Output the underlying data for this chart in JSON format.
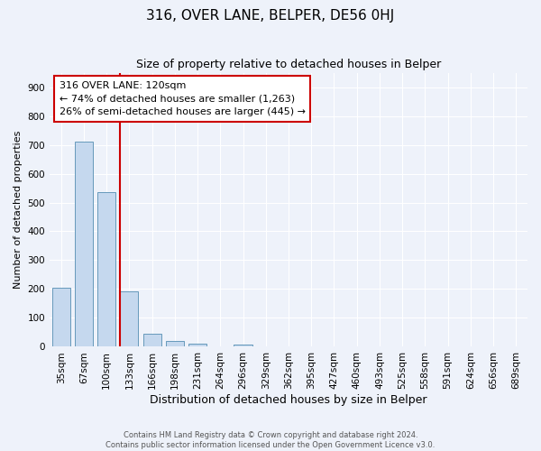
{
  "title": "316, OVER LANE, BELPER, DE56 0HJ",
  "subtitle": "Size of property relative to detached houses in Belper",
  "xlabel": "Distribution of detached houses by size in Belper",
  "ylabel": "Number of detached properties",
  "bin_labels": [
    "35sqm",
    "67sqm",
    "100sqm",
    "133sqm",
    "166sqm",
    "198sqm",
    "231sqm",
    "264sqm",
    "296sqm",
    "329sqm",
    "362sqm",
    "395sqm",
    "427sqm",
    "460sqm",
    "493sqm",
    "525sqm",
    "558sqm",
    "591sqm",
    "624sqm",
    "656sqm",
    "689sqm"
  ],
  "bar_heights": [
    204,
    710,
    537,
    193,
    46,
    20,
    11,
    0,
    8,
    0,
    0,
    0,
    0,
    0,
    0,
    0,
    0,
    0,
    0,
    0,
    0
  ],
  "bar_color": "#c5d8ee",
  "bar_edge_color": "#6699bb",
  "property_line_bin_index": 2.606,
  "annotation_title": "316 OVER LANE: 120sqm",
  "annotation_line1": "← 74% of detached houses are smaller (1,263)",
  "annotation_line2": "26% of semi-detached houses are larger (445) →",
  "annotation_box_color": "#ffffff",
  "annotation_box_edge_color": "#cc0000",
  "vline_color": "#cc0000",
  "ylim": [
    0,
    950
  ],
  "yticks": [
    0,
    100,
    200,
    300,
    400,
    500,
    600,
    700,
    800,
    900
  ],
  "footer1": "Contains HM Land Registry data © Crown copyright and database right 2024.",
  "footer2": "Contains public sector information licensed under the Open Government Licence v3.0.",
  "background_color": "#eef2fa",
  "grid_color": "#ffffff",
  "num_bins": 21,
  "bar_width": 0.8,
  "title_fontsize": 11,
  "subtitle_fontsize": 9,
  "xlabel_fontsize": 9,
  "ylabel_fontsize": 8,
  "tick_fontsize": 7.5,
  "annotation_fontsize": 8
}
